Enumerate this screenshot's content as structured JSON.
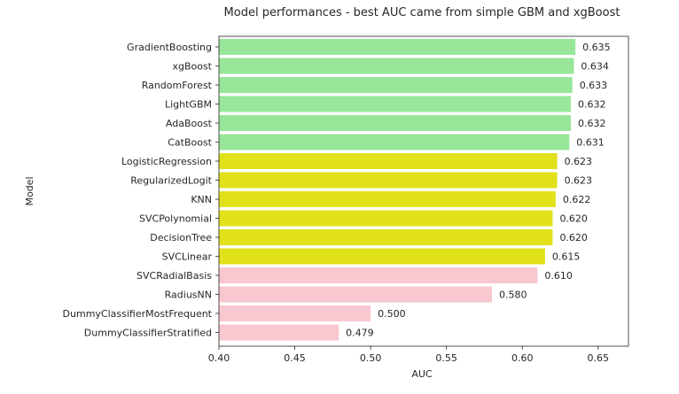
{
  "chart_data": {
    "type": "bar",
    "orientation": "horizontal",
    "title": "Model performances - best AUC came from simple GBM and xgBoost",
    "xlabel": "AUC",
    "ylabel": "Model",
    "xlim": [
      0.4,
      0.67
    ],
    "xticks": [
      "0.40",
      "0.45",
      "0.50",
      "0.55",
      "0.60",
      "0.65"
    ],
    "grid": false,
    "categories": [
      "GradientBoosting",
      "xgBoost",
      "RandomForest",
      "LightGBM",
      "AdaBoost",
      "CatBoost",
      "LogisticRegression",
      "RegularizedLogit",
      "KNN",
      "SVCPolynomial",
      "DecisionTree",
      "SVCLinear",
      "SVCRadialBasis",
      "RadiusNN",
      "DummyClassifierMostFrequent",
      "DummyClassifierStratified"
    ],
    "values": [
      0.635,
      0.634,
      0.633,
      0.632,
      0.632,
      0.631,
      0.623,
      0.623,
      0.622,
      0.62,
      0.62,
      0.615,
      0.61,
      0.58,
      0.5,
      0.479
    ],
    "value_labels": [
      "0.635",
      "0.634",
      "0.633",
      "0.632",
      "0.632",
      "0.631",
      "0.623",
      "0.623",
      "0.622",
      "0.620",
      "0.620",
      "0.615",
      "0.610",
      "0.580",
      "0.500",
      "0.479"
    ],
    "bar_colors": [
      "#98e69a",
      "#98e69a",
      "#98e69a",
      "#98e69a",
      "#98e69a",
      "#98e69a",
      "#e1e11c",
      "#e1e11c",
      "#e1e11c",
      "#e1e11c",
      "#e1e11c",
      "#e1e11c",
      "#f8c7d0",
      "#f8c7d0",
      "#f8c7d0",
      "#f8c7d0"
    ]
  }
}
